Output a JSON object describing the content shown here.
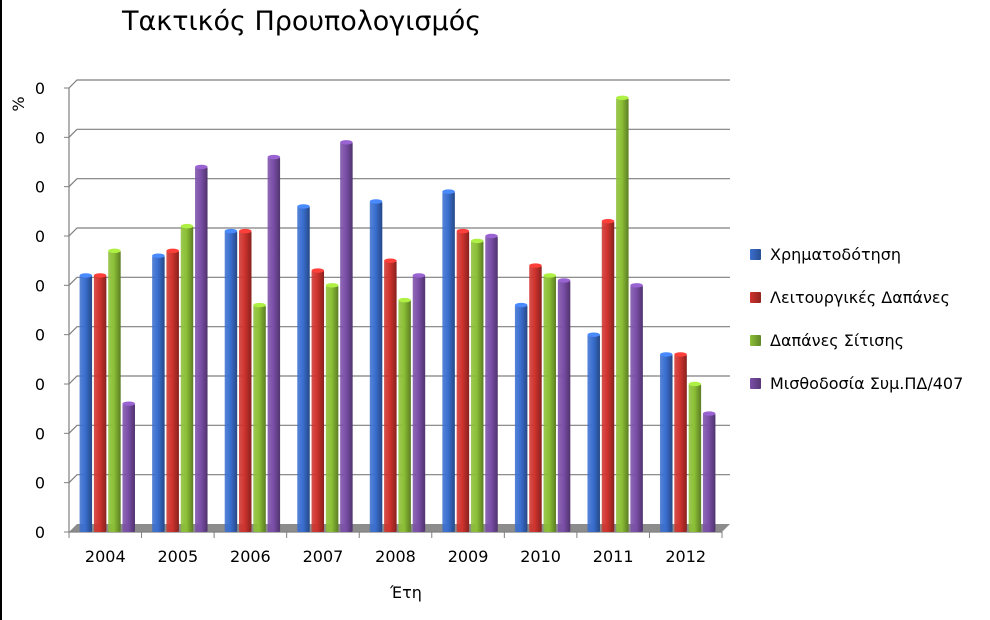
{
  "chart_data": {
    "type": "bar",
    "title": "Τακτικός Προυπολογισμός",
    "xlabel": "Έτη",
    "ylabel": "%",
    "categories": [
      "2004",
      "2005",
      "2006",
      "2007",
      "2008",
      "2009",
      "2010",
      "2011",
      "2012"
    ],
    "y_tick_labels": [
      "0",
      "0",
      "0",
      "0",
      "0",
      "0",
      "0",
      "0",
      "0",
      "0"
    ],
    "ylim": [
      0,
      9
    ],
    "grid": true,
    "legend_position": "right",
    "series": [
      {
        "name": "Χρηματοδότηση",
        "color": "#3a6fd0",
        "values": [
          5.2,
          5.6,
          6.1,
          6.6,
          6.7,
          6.9,
          4.6,
          4.0,
          3.6
        ]
      },
      {
        "name": "Λειτουργικές Δαπάνες",
        "color": "#d0332e",
        "values": [
          5.2,
          5.7,
          6.1,
          5.3,
          5.5,
          6.1,
          5.4,
          6.3,
          3.6
        ]
      },
      {
        "name": "Δαπάνες Σίτισης",
        "color": "#8cc036",
        "values": [
          5.7,
          6.2,
          4.6,
          5.0,
          4.7,
          5.9,
          5.2,
          8.8,
          3.0
        ]
      },
      {
        "name": "Μισθοδοσία Συμ.ΠΔ/407",
        "color": "#7b4fa8",
        "values": [
          2.6,
          7.4,
          7.6,
          7.9,
          5.2,
          6.0,
          5.1,
          5.0,
          2.4
        ]
      }
    ]
  }
}
